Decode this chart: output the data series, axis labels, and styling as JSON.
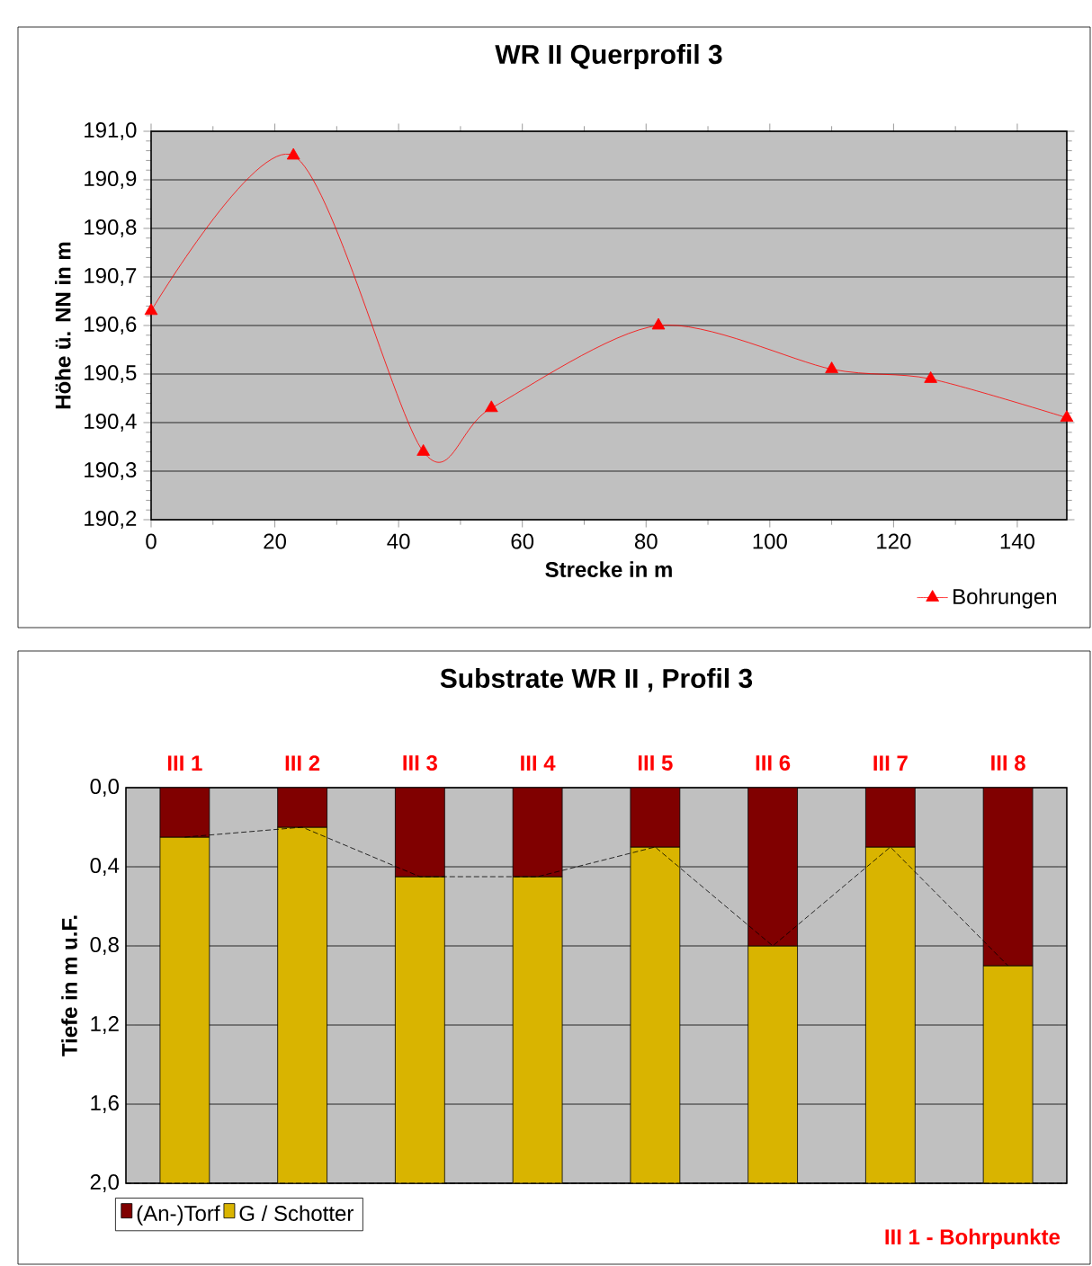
{
  "chart_data": [
    {
      "type": "line",
      "title": "WR II Querprofil 3",
      "xlabel": "Strecke  in m",
      "ylabel": "Höhe ü. NN in m",
      "x": [
        0,
        23,
        44,
        55,
        82,
        110,
        126,
        148
      ],
      "series": [
        {
          "name": "Bohrungen",
          "color": "#ff0000",
          "values": [
            190.63,
            190.95,
            190.34,
            190.43,
            190.6,
            190.51,
            190.49,
            190.41
          ]
        }
      ],
      "xlim": [
        0,
        148
      ],
      "xticks": [
        0,
        20,
        40,
        60,
        80,
        100,
        120,
        140
      ],
      "ylim": [
        190.2,
        191.0
      ],
      "yticks": [
        {
          "value": 190.2,
          "label": "190,2"
        },
        {
          "value": 190.3,
          "label": "190,3"
        },
        {
          "value": 190.4,
          "label": "190,4"
        },
        {
          "value": 190.5,
          "label": "190,5"
        },
        {
          "value": 190.6,
          "label": "190,6"
        },
        {
          "value": 190.7,
          "label": "190,7"
        },
        {
          "value": 190.8,
          "label": "190,8"
        },
        {
          "value": 190.9,
          "label": "190,9"
        },
        {
          "value": 191.0,
          "label": "191,0"
        }
      ],
      "grid": "y",
      "legend": "bottom right",
      "marker": "triangle"
    },
    {
      "type": "bar",
      "stacked": true,
      "title": "Substrate WR II , Profil 3",
      "ylabel": "Tiefe in m u.F.",
      "categories": [
        "III 1",
        "III 2",
        "III 3",
        "III 4",
        "III 5",
        "III 6",
        "III 7",
        "III 8"
      ],
      "series": [
        {
          "name": "(An-)Torf",
          "color": "#800000",
          "values": [
            0.25,
            0.2,
            0.45,
            0.45,
            0.3,
            0.8,
            0.3,
            0.9
          ]
        },
        {
          "name": "G / Schotter",
          "color": "#d9b400",
          "values": [
            1.75,
            1.8,
            1.55,
            1.55,
            1.7,
            1.2,
            1.7,
            1.1
          ]
        },
        {
          "type": "line",
          "color": "#000000",
          "line_style": "dashed",
          "values": [
            0.25,
            0.2,
            0.45,
            0.45,
            0.3,
            0.8,
            0.3,
            0.9
          ]
        }
      ],
      "ylim": [
        2.0,
        0.0
      ],
      "yticks": [
        {
          "value": 0.0,
          "label": "0,0"
        },
        {
          "value": 0.4,
          "label": "0,4"
        },
        {
          "value": 0.8,
          "label": "0,8"
        },
        {
          "value": 1.2,
          "label": "1,2"
        },
        {
          "value": 1.6,
          "label": "1,6"
        },
        {
          "value": 2.0,
          "label": "2,0"
        }
      ],
      "ref_lines": [
        {
          "axis": "y",
          "value": 2.0,
          "color": "#000000",
          "line_style": "dashed"
        }
      ],
      "grid": "y",
      "legend": "bottom left",
      "annotations": [
        "III 1 - Bohrpunkte"
      ]
    }
  ]
}
